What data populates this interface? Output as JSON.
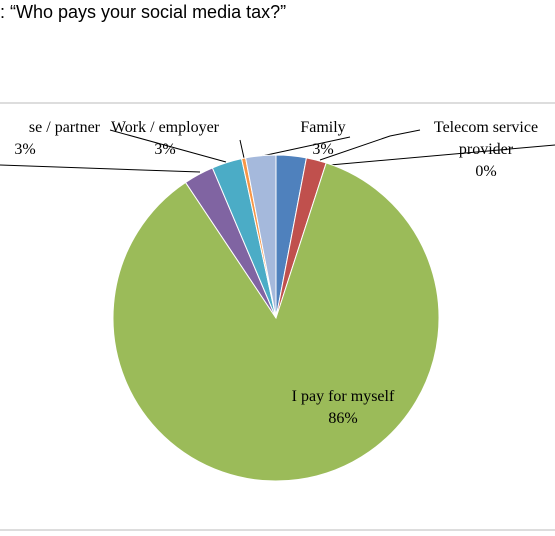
{
  "chart_data": {
    "type": "pie",
    "title": ": “Who pays your social media tax?”",
    "categories": [
      null,
      null,
      "I pay for myself",
      "se / partner",
      "Work / employer",
      "Telecom service provider",
      "Family"
    ],
    "values": [
      3,
      2,
      86,
      3,
      3,
      0.4,
      3
    ],
    "value_labels": [
      null,
      null,
      "86%",
      "3%",
      "3%",
      "0%",
      "3%"
    ],
    "colors": [
      "#4f81bd",
      "#c0504d",
      "#9bbb59",
      "#8064a2",
      "#4bacc6",
      "#f79646",
      "#a5b9dc"
    ]
  }
}
